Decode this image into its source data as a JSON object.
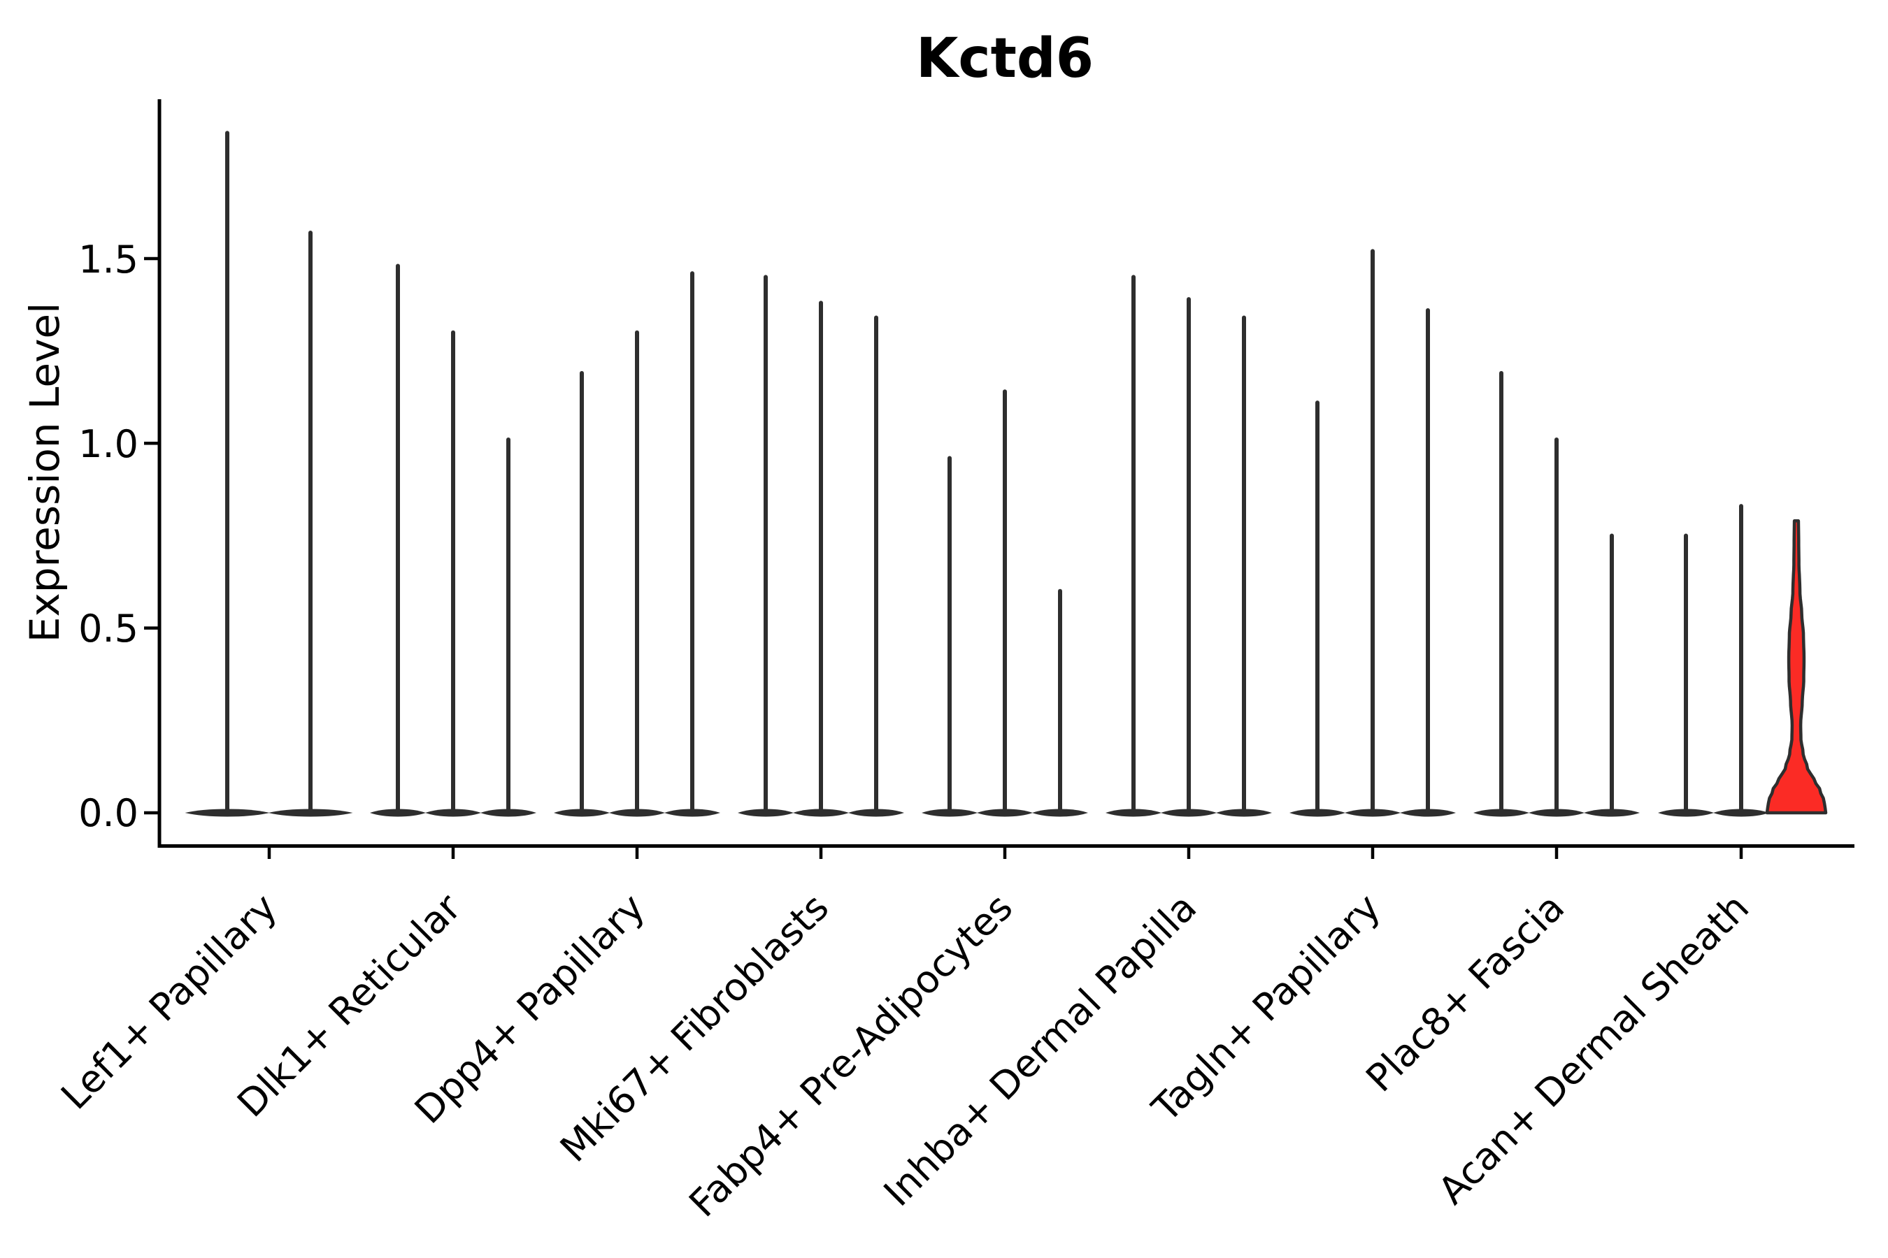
{
  "title": "Kctd6",
  "chart_data": {
    "type": "violin",
    "title": "Kctd6",
    "xlabel": "",
    "ylabel": "Expression Level",
    "ytick_labels": [
      "0.0",
      "0.5",
      "1.0",
      "1.5"
    ],
    "yticks": [
      0.0,
      0.5,
      1.0,
      1.5
    ],
    "ylim": [
      -0.09,
      1.93
    ],
    "grid": false,
    "legend": "none",
    "background_color": "#ffffff",
    "axis_color": "#000000",
    "violin_color": "#2e2e2e",
    "categories": [
      "Lef1+ Papillary",
      "Dlk1+ Reticular",
      "Dpp4+ Papillary",
      "Mki67+ Fibroblasts",
      "Fabp4+ Pre-Adipocytes",
      "Inhba+ Dermal Papilla",
      "Tagln+ Papillary",
      "Plac8+ Fascia",
      "Acan+ Dermal Sheath"
    ],
    "groups": [
      {
        "category": "Lef1+ Papillary",
        "violin_maxima": [
          1.84,
          1.57
        ]
      },
      {
        "category": "Dlk1+ Reticular",
        "violin_maxima": [
          1.48,
          1.3,
          1.01
        ]
      },
      {
        "category": "Dpp4+ Papillary",
        "violin_maxima": [
          1.19,
          1.3,
          1.46
        ]
      },
      {
        "category": "Mki67+ Fibroblasts",
        "violin_maxima": [
          1.45,
          1.38,
          1.34
        ]
      },
      {
        "category": "Fabp4+ Pre-Adipocytes",
        "violin_maxima": [
          0.96,
          1.14,
          0.6
        ]
      },
      {
        "category": "Inhba+ Dermal Papilla",
        "violin_maxima": [
          1.45,
          1.39,
          1.34
        ]
      },
      {
        "category": "Tagln+ Papillary",
        "violin_maxima": [
          1.11,
          1.52,
          1.36
        ]
      },
      {
        "category": "Plac8+ Fascia",
        "violin_maxima": [
          1.19,
          1.01,
          0.75
        ]
      },
      {
        "category": "Acan+ Dermal Sheath",
        "violin_maxima": [
          0.75,
          0.83,
          0.79
        ]
      }
    ],
    "highlight_violin": {
      "category": "Acan+ Dermal Sheath",
      "group_index": 8,
      "violin_index": 2,
      "max": 0.79,
      "fill_color": "#fb2b25",
      "edge_color": "#2e2e2e",
      "width_profile": [
        [
          0.0,
          1.0
        ],
        [
          0.03,
          0.95
        ],
        [
          0.06,
          0.81
        ],
        [
          0.09,
          0.6
        ],
        [
          0.12,
          0.38
        ],
        [
          0.16,
          0.23
        ],
        [
          0.2,
          0.155
        ],
        [
          0.24,
          0.145
        ],
        [
          0.3,
          0.2
        ],
        [
          0.36,
          0.25
        ],
        [
          0.42,
          0.26
        ],
        [
          0.48,
          0.24
        ],
        [
          0.54,
          0.18
        ],
        [
          0.6,
          0.12
        ],
        [
          0.68,
          0.085
        ],
        [
          0.74,
          0.078
        ],
        [
          0.79,
          0.07
        ]
      ]
    }
  }
}
